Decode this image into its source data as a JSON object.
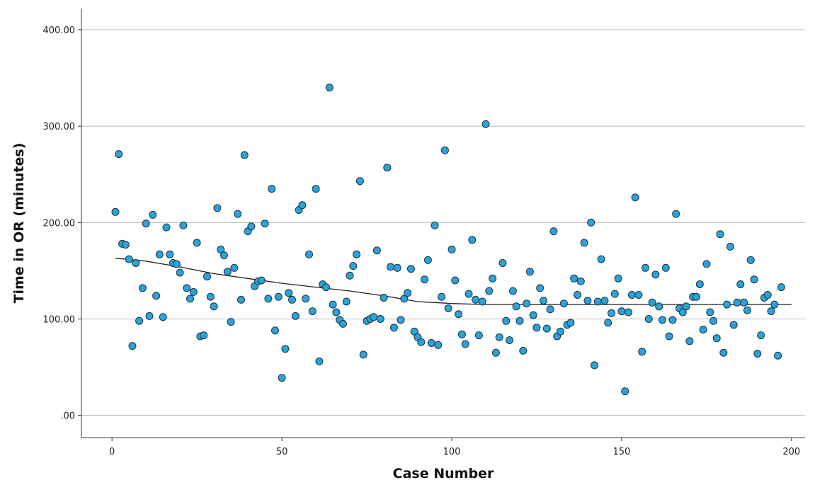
{
  "chart_data": {
    "type": "scatter",
    "title": "",
    "xlabel": "Case Number",
    "ylabel": "Time in OR (minutes)",
    "xlim": [
      -9,
      204
    ],
    "ylim": [
      -23,
      422
    ],
    "x_ticks": [
      0,
      50,
      100,
      150,
      200
    ],
    "x_tick_labels": [
      "0",
      "50",
      "100",
      "150",
      "200"
    ],
    "y_ticks": [
      0,
      100,
      200,
      300,
      400
    ],
    "y_tick_labels": [
      ".00",
      "100.00",
      "200.00",
      "300.00",
      "400.00"
    ],
    "grid": "horizontal",
    "colors": {
      "point_fill": "#2ba3d8",
      "point_edge": "#1a3440",
      "fit_line": "#222222",
      "grid": "#b8b8b8"
    },
    "points": [
      [
        1,
        211
      ],
      [
        2,
        271
      ],
      [
        3,
        178
      ],
      [
        4,
        177
      ],
      [
        5,
        162
      ],
      [
        6,
        72
      ],
      [
        7,
        158
      ],
      [
        8,
        98
      ],
      [
        9,
        132
      ],
      [
        10,
        199
      ],
      [
        11,
        103
      ],
      [
        12,
        208
      ],
      [
        13,
        124
      ],
      [
        14,
        167
      ],
      [
        15,
        102
      ],
      [
        16,
        195
      ],
      [
        17,
        167
      ],
      [
        18,
        158
      ],
      [
        19,
        157
      ],
      [
        20,
        148
      ],
      [
        21,
        197
      ],
      [
        22,
        132
      ],
      [
        23,
        121
      ],
      [
        24,
        128
      ],
      [
        25,
        179
      ],
      [
        26,
        82
      ],
      [
        27,
        83
      ],
      [
        28,
        144
      ],
      [
        29,
        123
      ],
      [
        30,
        113
      ],
      [
        31,
        215
      ],
      [
        32,
        172
      ],
      [
        33,
        166
      ],
      [
        34,
        149
      ],
      [
        35,
        97
      ],
      [
        36,
        153
      ],
      [
        37,
        209
      ],
      [
        38,
        120
      ],
      [
        39,
        270
      ],
      [
        40,
        191
      ],
      [
        41,
        196
      ],
      [
        42,
        134
      ],
      [
        43,
        139
      ],
      [
        44,
        140
      ],
      [
        45,
        199
      ],
      [
        46,
        121
      ],
      [
        47,
        235
      ],
      [
        48,
        88
      ],
      [
        49,
        123
      ],
      [
        50,
        39
      ],
      [
        51,
        69
      ],
      [
        52,
        127
      ],
      [
        53,
        120
      ],
      [
        54,
        103
      ],
      [
        55,
        213
      ],
      [
        56,
        218
      ],
      [
        57,
        121
      ],
      [
        58,
        167
      ],
      [
        59,
        108
      ],
      [
        60,
        235
      ],
      [
        61,
        56
      ],
      [
        62,
        136
      ],
      [
        63,
        133
      ],
      [
        64,
        340
      ],
      [
        65,
        115
      ],
      [
        66,
        107
      ],
      [
        67,
        99
      ],
      [
        68,
        95
      ],
      [
        69,
        118
      ],
      [
        70,
        145
      ],
      [
        71,
        155
      ],
      [
        72,
        167
      ],
      [
        73,
        243
      ],
      [
        74,
        63
      ],
      [
        75,
        98
      ],
      [
        76,
        100
      ],
      [
        77,
        102
      ],
      [
        78,
        171
      ],
      [
        79,
        100
      ],
      [
        80,
        122
      ],
      [
        81,
        257
      ],
      [
        82,
        154
      ],
      [
        83,
        91
      ],
      [
        84,
        153
      ],
      [
        85,
        99
      ],
      [
        86,
        121
      ],
      [
        87,
        127
      ],
      [
        88,
        152
      ],
      [
        89,
        87
      ],
      [
        90,
        81
      ],
      [
        91,
        76
      ],
      [
        92,
        141
      ],
      [
        93,
        161
      ],
      [
        94,
        75
      ],
      [
        95,
        197
      ],
      [
        96,
        73
      ],
      [
        97,
        123
      ],
      [
        98,
        275
      ],
      [
        99,
        111
      ],
      [
        100,
        172
      ],
      [
        101,
        140
      ],
      [
        102,
        105
      ],
      [
        103,
        84
      ],
      [
        104,
        74
      ],
      [
        105,
        126
      ],
      [
        106,
        182
      ],
      [
        107,
        120
      ],
      [
        108,
        83
      ],
      [
        109,
        118
      ],
      [
        110,
        302
      ],
      [
        111,
        129
      ],
      [
        112,
        142
      ],
      [
        113,
        65
      ],
      [
        114,
        81
      ],
      [
        115,
        158
      ],
      [
        116,
        98
      ],
      [
        117,
        78
      ],
      [
        118,
        129
      ],
      [
        119,
        113
      ],
      [
        120,
        98
      ],
      [
        121,
        67
      ],
      [
        122,
        116
      ],
      [
        123,
        149
      ],
      [
        124,
        104
      ],
      [
        125,
        91
      ],
      [
        126,
        132
      ],
      [
        127,
        119
      ],
      [
        128,
        90
      ],
      [
        129,
        110
      ],
      [
        130,
        191
      ],
      [
        131,
        82
      ],
      [
        132,
        87
      ],
      [
        133,
        116
      ],
      [
        134,
        94
      ],
      [
        135,
        96
      ],
      [
        136,
        142
      ],
      [
        137,
        125
      ],
      [
        138,
        139
      ],
      [
        139,
        179
      ],
      [
        140,
        119
      ],
      [
        141,
        200
      ],
      [
        142,
        52
      ],
      [
        143,
        118
      ],
      [
        144,
        162
      ],
      [
        145,
        119
      ],
      [
        146,
        96
      ],
      [
        147,
        106
      ],
      [
        148,
        126
      ],
      [
        149,
        142
      ],
      [
        150,
        108
      ],
      [
        151,
        25
      ],
      [
        152,
        107
      ],
      [
        153,
        125
      ],
      [
        154,
        226
      ],
      [
        155,
        125
      ],
      [
        156,
        66
      ],
      [
        157,
        153
      ],
      [
        158,
        100
      ],
      [
        159,
        117
      ],
      [
        160,
        146
      ],
      [
        161,
        113
      ],
      [
        162,
        99
      ],
      [
        163,
        153
      ],
      [
        164,
        82
      ],
      [
        165,
        99
      ],
      [
        166,
        209
      ],
      [
        167,
        111
      ],
      [
        168,
        107
      ],
      [
        169,
        113
      ],
      [
        170,
        77
      ],
      [
        171,
        123
      ],
      [
        172,
        123
      ],
      [
        173,
        136
      ],
      [
        174,
        89
      ],
      [
        175,
        157
      ],
      [
        176,
        107
      ],
      [
        177,
        98
      ],
      [
        178,
        80
      ],
      [
        179,
        188
      ],
      [
        180,
        65
      ],
      [
        181,
        115
      ],
      [
        182,
        175
      ],
      [
        183,
        94
      ],
      [
        184,
        117
      ],
      [
        185,
        136
      ],
      [
        186,
        117
      ],
      [
        187,
        109
      ],
      [
        188,
        161
      ],
      [
        189,
        141
      ],
      [
        190,
        64
      ],
      [
        191,
        83
      ],
      [
        192,
        122
      ],
      [
        193,
        125
      ],
      [
        194,
        108
      ],
      [
        195,
        115
      ],
      [
        196,
        62
      ],
      [
        197,
        133
      ]
    ],
    "fit_line": [
      [
        1,
        163
      ],
      [
        10,
        160
      ],
      [
        20,
        154
      ],
      [
        30,
        147
      ],
      [
        40,
        142
      ],
      [
        50,
        137
      ],
      [
        60,
        133
      ],
      [
        70,
        129
      ],
      [
        80,
        124
      ],
      [
        90,
        118
      ],
      [
        95,
        117
      ],
      [
        100,
        116
      ],
      [
        110,
        115
      ],
      [
        130,
        115
      ],
      [
        150,
        115
      ],
      [
        170,
        115
      ],
      [
        200,
        115
      ]
    ]
  }
}
